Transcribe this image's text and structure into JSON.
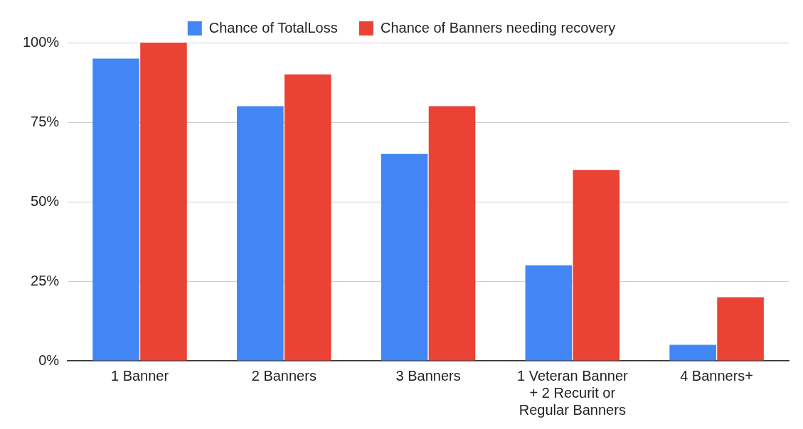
{
  "chart_data": {
    "type": "bar",
    "categories": [
      "1 Banner",
      "2 Banners",
      "3 Banners",
      "1 Veteran Banner + 2 Recurit or Regular Banners",
      "4 Banners+"
    ],
    "series": [
      {
        "name": "Chance of TotalLoss",
        "color": "#4285f4",
        "values": [
          95,
          80,
          65,
          30,
          5
        ]
      },
      {
        "name": "Chance of Banners needing recovery",
        "color": "#ea4335",
        "values": [
          100,
          90,
          80,
          60,
          20
        ]
      }
    ],
    "ylim": [
      0,
      100
    ],
    "yticks": [
      {
        "value": 0,
        "label": "0%"
      },
      {
        "value": 25,
        "label": "25%"
      },
      {
        "value": 50,
        "label": "50%"
      },
      {
        "value": 75,
        "label": "75%"
      },
      {
        "value": 100,
        "label": "100%"
      }
    ],
    "grid": "y",
    "legend": "top"
  }
}
